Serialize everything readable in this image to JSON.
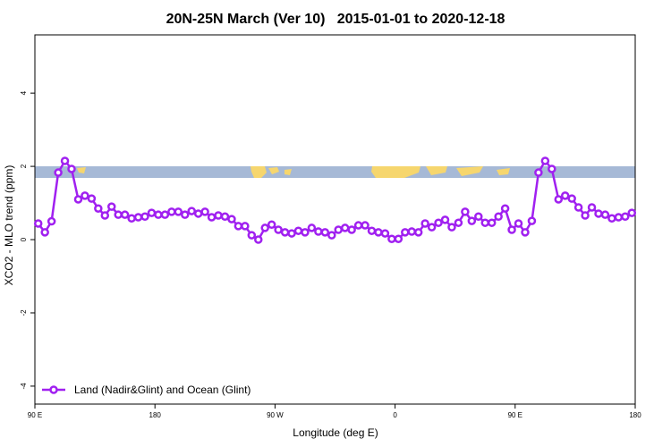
{
  "chart_data": {
    "type": "line",
    "title": "20N-25N March (Ver 10)   2015-01-01 to 2020-12-18",
    "x_label": "Longitude (deg E)",
    "y_label": "XCO2 - MLO trend (ppm)",
    "xlim": [
      90,
      540
    ],
    "ylim": [
      -4.49,
      5.59
    ],
    "xticks": [
      {
        "value": 90,
        "label": "90 E"
      },
      180,
      {
        "value": 270,
        "label": "90 W"
      },
      {
        "value": 360,
        "label": "0"
      },
      {
        "value": 450,
        "label": "90 E"
      },
      {
        "value": 540,
        "label": "180"
      }
    ],
    "yticks": [
      -4,
      -2,
      0,
      2,
      4
    ],
    "legend": "bottom-left",
    "series": [
      {
        "name": "Land (Nadir&Glint) and Ocean (Glint)",
        "color": "#a020f0",
        "x": [
          92.5,
          97.5,
          102.5,
          107.5,
          112.5,
          117.5,
          122.5,
          127.5,
          132.5,
          137.5,
          142.5,
          147.5,
          152.5,
          157.5,
          162.5,
          167.5,
          172.5,
          177.5,
          182.5,
          187.5,
          192.5,
          197.5,
          202.5,
          207.5,
          212.5,
          217.5,
          222.5,
          227.5,
          232.5,
          237.5,
          242.5,
          247.5,
          252.5,
          257.5,
          262.5,
          267.5,
          272.5,
          277.5,
          282.5,
          287.5,
          292.5,
          297.5,
          302.5,
          307.5,
          312.5,
          317.5,
          322.5,
          327.5,
          332.5,
          337.5,
          342.5,
          347.5,
          352.5,
          357.5,
          362.5,
          367.5,
          372.5,
          377.5,
          382.5,
          387.5,
          392.5,
          397.5,
          402.5,
          407.5,
          412.5,
          417.5,
          422.5,
          427.5,
          432.5,
          437.5,
          442.5,
          447.5,
          452.5,
          457.5,
          462.5,
          467.5,
          472.5,
          477.5,
          482.5,
          487.5,
          492.5,
          497.5,
          502.5,
          507.5,
          512.5,
          517.5,
          522.5,
          527.5,
          532.5,
          537.5
        ],
        "values": [
          0.44,
          0.2,
          0.5,
          1.83,
          2.15,
          1.93,
          1.1,
          1.2,
          1.12,
          0.85,
          0.66,
          0.9,
          0.68,
          0.68,
          0.58,
          0.61,
          0.63,
          0.73,
          0.68,
          0.68,
          0.76,
          0.76,
          0.68,
          0.78,
          0.71,
          0.76,
          0.61,
          0.66,
          0.63,
          0.56,
          0.37,
          0.37,
          0.12,
          0.0,
          0.32,
          0.41,
          0.27,
          0.2,
          0.17,
          0.24,
          0.2,
          0.32,
          0.22,
          0.2,
          0.12,
          0.27,
          0.32,
          0.27,
          0.39,
          0.39,
          0.24,
          0.2,
          0.17,
          0.02,
          0.02,
          0.2,
          0.22,
          0.2,
          0.44,
          0.34,
          0.46,
          0.54,
          0.34,
          0.46,
          0.76,
          0.51,
          0.63,
          0.46,
          0.46,
          0.63,
          0.85,
          0.27,
          0.44,
          0.2,
          0.51,
          1.83,
          2.15,
          1.93,
          1.1,
          1.2,
          1.12,
          0.88,
          0.66,
          0.88,
          0.71,
          0.68,
          0.58,
          0.61,
          0.63,
          0.73
        ]
      }
    ]
  }
}
